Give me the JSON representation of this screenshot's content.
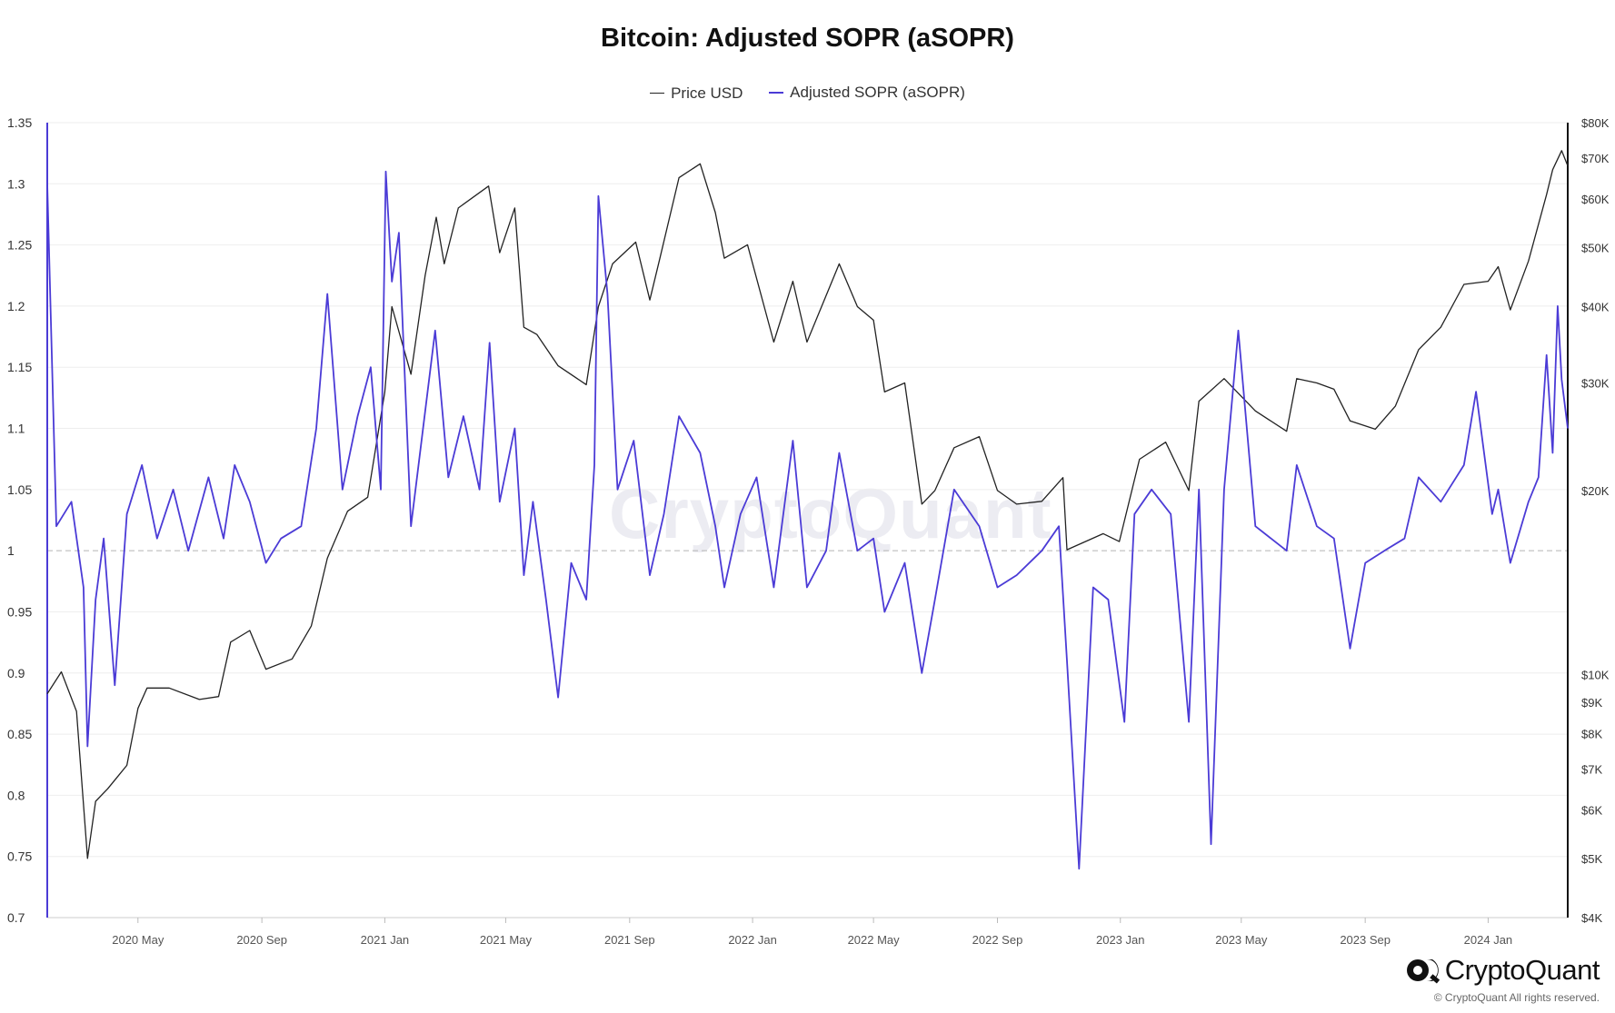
{
  "chart_data": {
    "type": "line",
    "title": "Bitcoin: Adjusted SOPR (aSOPR)",
    "legend_placement": "top-center",
    "grid": true,
    "x_range": [
      "2020-02-01",
      "2024-03-20"
    ],
    "x_ticks": [
      {
        "label": "2020 May",
        "date": "2020-05-01"
      },
      {
        "label": "2020 Sep",
        "date": "2020-09-01"
      },
      {
        "label": "2021 Jan",
        "date": "2021-01-01"
      },
      {
        "label": "2021 May",
        "date": "2021-05-01"
      },
      {
        "label": "2021 Sep",
        "date": "2021-09-01"
      },
      {
        "label": "2022 Jan",
        "date": "2022-01-01"
      },
      {
        "label": "2022 May",
        "date": "2022-05-01"
      },
      {
        "label": "2022 Sep",
        "date": "2022-09-01"
      },
      {
        "label": "2023 Jan",
        "date": "2023-01-01"
      },
      {
        "label": "2023 May",
        "date": "2023-05-01"
      },
      {
        "label": "2023 Sep",
        "date": "2023-09-01"
      },
      {
        "label": "2024 Jan",
        "date": "2024-01-01"
      }
    ],
    "y_left": {
      "scale": "linear",
      "range": [
        0.7,
        1.35
      ],
      "ticks": [
        1.35,
        1.3,
        1.25,
        1.2,
        1.15,
        1.1,
        1.05,
        1,
        0.95,
        0.9,
        0.85,
        0.8,
        0.75,
        0.7
      ],
      "tick_labels": [
        "1.35",
        "1.3",
        "1.25",
        "1.2",
        "1.15",
        "1.1",
        "1.05",
        "1",
        "0.95",
        "0.9",
        "0.85",
        "0.8",
        "0.75",
        "0.7"
      ],
      "reference_line": 1
    },
    "y_right": {
      "scale": "log",
      "range": [
        4000,
        80000
      ],
      "ticks": [
        80000,
        70000,
        60000,
        50000,
        40000,
        30000,
        20000,
        10000,
        9000,
        8000,
        7000,
        6000,
        5000,
        4000
      ],
      "tick_labels": [
        "$80K",
        "$70K",
        "$60K",
        "$50K",
        "$40K",
        "$30K",
        "$20K",
        "$10K",
        "$9K",
        "$8K",
        "$7K",
        "$6K",
        "$5K",
        "$4K"
      ]
    },
    "series": [
      {
        "name": "Price USD",
        "axis": "right",
        "color": "#222222",
        "points": [
          [
            "2020-02-01",
            9300
          ],
          [
            "2020-02-15",
            10100
          ],
          [
            "2020-03-01",
            8700
          ],
          [
            "2020-03-12",
            5000
          ],
          [
            "2020-03-20",
            6200
          ],
          [
            "2020-04-01",
            6500
          ],
          [
            "2020-04-20",
            7100
          ],
          [
            "2020-05-01",
            8800
          ],
          [
            "2020-05-10",
            9500
          ],
          [
            "2020-06-01",
            9500
          ],
          [
            "2020-07-01",
            9100
          ],
          [
            "2020-07-20",
            9200
          ],
          [
            "2020-08-01",
            11300
          ],
          [
            "2020-08-20",
            11800
          ],
          [
            "2020-09-05",
            10200
          ],
          [
            "2020-10-01",
            10600
          ],
          [
            "2020-10-20",
            12000
          ],
          [
            "2020-11-05",
            15500
          ],
          [
            "2020-11-25",
            18500
          ],
          [
            "2020-12-15",
            19500
          ],
          [
            "2021-01-01",
            29000
          ],
          [
            "2021-01-08",
            40000
          ],
          [
            "2021-01-27",
            31000
          ],
          [
            "2021-02-10",
            45000
          ],
          [
            "2021-02-21",
            56000
          ],
          [
            "2021-03-01",
            47000
          ],
          [
            "2021-03-15",
            58000
          ],
          [
            "2021-04-14",
            63000
          ],
          [
            "2021-04-25",
            49000
          ],
          [
            "2021-05-10",
            58000
          ],
          [
            "2021-05-19",
            37000
          ],
          [
            "2021-06-01",
            36000
          ],
          [
            "2021-06-22",
            32000
          ],
          [
            "2021-07-20",
            29800
          ],
          [
            "2021-08-01",
            40000
          ],
          [
            "2021-08-15",
            47000
          ],
          [
            "2021-09-07",
            51000
          ],
          [
            "2021-09-21",
            41000
          ],
          [
            "2021-10-01",
            48000
          ],
          [
            "2021-10-20",
            65000
          ],
          [
            "2021-11-10",
            68500
          ],
          [
            "2021-11-25",
            57000
          ],
          [
            "2021-12-04",
            48000
          ],
          [
            "2021-12-27",
            50500
          ],
          [
            "2022-01-22",
            35000
          ],
          [
            "2022-02-10",
            44000
          ],
          [
            "2022-02-24",
            35000
          ],
          [
            "2022-03-28",
            47000
          ],
          [
            "2022-04-15",
            40000
          ],
          [
            "2022-05-01",
            38000
          ],
          [
            "2022-05-12",
            29000
          ],
          [
            "2022-06-01",
            30000
          ],
          [
            "2022-06-18",
            19000
          ],
          [
            "2022-07-01",
            20000
          ],
          [
            "2022-07-20",
            23500
          ],
          [
            "2022-08-14",
            24500
          ],
          [
            "2022-09-01",
            20000
          ],
          [
            "2022-09-20",
            19000
          ],
          [
            "2022-10-15",
            19200
          ],
          [
            "2022-11-05",
            21000
          ],
          [
            "2022-11-09",
            16000
          ],
          [
            "2022-12-15",
            17000
          ],
          [
            "2022-12-31",
            16500
          ],
          [
            "2023-01-20",
            22500
          ],
          [
            "2023-02-15",
            24000
          ],
          [
            "2023-03-10",
            20000
          ],
          [
            "2023-03-20",
            28000
          ],
          [
            "2023-04-14",
            30500
          ],
          [
            "2023-05-15",
            27000
          ],
          [
            "2023-06-15",
            25000
          ],
          [
            "2023-06-25",
            30500
          ],
          [
            "2023-07-15",
            30000
          ],
          [
            "2023-08-01",
            29300
          ],
          [
            "2023-08-17",
            26000
          ],
          [
            "2023-09-11",
            25200
          ],
          [
            "2023-10-01",
            27500
          ],
          [
            "2023-10-24",
            34000
          ],
          [
            "2023-11-15",
            37000
          ],
          [
            "2023-12-08",
            43500
          ],
          [
            "2024-01-01",
            44000
          ],
          [
            "2024-01-11",
            46500
          ],
          [
            "2024-01-23",
            39500
          ],
          [
            "2024-02-10",
            47500
          ],
          [
            "2024-02-28",
            61000
          ],
          [
            "2024-03-05",
            67000
          ],
          [
            "2024-03-14",
            72000
          ],
          [
            "2024-03-20",
            68000
          ]
        ]
      },
      {
        "name": "Adjusted SOPR (aSOPR)",
        "axis": "left",
        "color": "#4b3bd6",
        "points": [
          [
            "2020-02-01",
            1.3
          ],
          [
            "2020-02-10",
            1.02
          ],
          [
            "2020-02-25",
            1.04
          ],
          [
            "2020-03-08",
            0.97
          ],
          [
            "2020-03-12",
            0.84
          ],
          [
            "2020-03-20",
            0.96
          ],
          [
            "2020-03-28",
            1.01
          ],
          [
            "2020-04-08",
            0.89
          ],
          [
            "2020-04-20",
            1.03
          ],
          [
            "2020-05-05",
            1.07
          ],
          [
            "2020-05-20",
            1.01
          ],
          [
            "2020-06-05",
            1.05
          ],
          [
            "2020-06-20",
            1.0
          ],
          [
            "2020-07-10",
            1.06
          ],
          [
            "2020-07-25",
            1.01
          ],
          [
            "2020-08-05",
            1.07
          ],
          [
            "2020-08-20",
            1.04
          ],
          [
            "2020-09-05",
            0.99
          ],
          [
            "2020-09-20",
            1.01
          ],
          [
            "2020-10-10",
            1.02
          ],
          [
            "2020-10-25",
            1.1
          ],
          [
            "2020-11-05",
            1.21
          ],
          [
            "2020-11-20",
            1.05
          ],
          [
            "2020-12-05",
            1.11
          ],
          [
            "2020-12-18",
            1.15
          ],
          [
            "2020-12-28",
            1.05
          ],
          [
            "2021-01-02",
            1.31
          ],
          [
            "2021-01-08",
            1.22
          ],
          [
            "2021-01-15",
            1.26
          ],
          [
            "2021-01-27",
            1.02
          ],
          [
            "2021-02-08",
            1.1
          ],
          [
            "2021-02-20",
            1.18
          ],
          [
            "2021-03-05",
            1.06
          ],
          [
            "2021-03-20",
            1.11
          ],
          [
            "2021-04-05",
            1.05
          ],
          [
            "2021-04-15",
            1.17
          ],
          [
            "2021-04-25",
            1.04
          ],
          [
            "2021-05-10",
            1.1
          ],
          [
            "2021-05-19",
            0.98
          ],
          [
            "2021-05-28",
            1.04
          ],
          [
            "2021-06-10",
            0.96
          ],
          [
            "2021-06-22",
            0.88
          ],
          [
            "2021-07-05",
            0.99
          ],
          [
            "2021-07-20",
            0.96
          ],
          [
            "2021-07-28",
            1.07
          ],
          [
            "2021-08-01",
            1.29
          ],
          [
            "2021-08-10",
            1.21
          ],
          [
            "2021-08-20",
            1.05
          ],
          [
            "2021-09-05",
            1.09
          ],
          [
            "2021-09-21",
            0.98
          ],
          [
            "2021-10-05",
            1.03
          ],
          [
            "2021-10-20",
            1.11
          ],
          [
            "2021-11-10",
            1.08
          ],
          [
            "2021-11-25",
            1.02
          ],
          [
            "2021-12-04",
            0.97
          ],
          [
            "2021-12-20",
            1.03
          ],
          [
            "2022-01-05",
            1.06
          ],
          [
            "2022-01-22",
            0.97
          ],
          [
            "2022-02-10",
            1.09
          ],
          [
            "2022-02-24",
            0.97
          ],
          [
            "2022-03-15",
            1.0
          ],
          [
            "2022-03-28",
            1.08
          ],
          [
            "2022-04-15",
            1.0
          ],
          [
            "2022-05-01",
            1.01
          ],
          [
            "2022-05-12",
            0.95
          ],
          [
            "2022-06-01",
            0.99
          ],
          [
            "2022-06-18",
            0.9
          ],
          [
            "2022-07-01",
            0.96
          ],
          [
            "2022-07-20",
            1.05
          ],
          [
            "2022-08-14",
            1.02
          ],
          [
            "2022-09-01",
            0.97
          ],
          [
            "2022-09-20",
            0.98
          ],
          [
            "2022-10-15",
            1.0
          ],
          [
            "2022-11-01",
            1.02
          ],
          [
            "2022-11-09",
            0.91
          ],
          [
            "2022-11-21",
            0.74
          ],
          [
            "2022-12-05",
            0.97
          ],
          [
            "2022-12-20",
            0.96
          ],
          [
            "2023-01-05",
            0.86
          ],
          [
            "2023-01-15",
            1.03
          ],
          [
            "2023-02-01",
            1.05
          ],
          [
            "2023-02-20",
            1.03
          ],
          [
            "2023-03-10",
            0.86
          ],
          [
            "2023-03-20",
            1.05
          ],
          [
            "2023-04-01",
            0.76
          ],
          [
            "2023-04-14",
            1.05
          ],
          [
            "2023-04-28",
            1.18
          ],
          [
            "2023-05-15",
            1.02
          ],
          [
            "2023-06-15",
            1.0
          ],
          [
            "2023-06-25",
            1.07
          ],
          [
            "2023-07-15",
            1.02
          ],
          [
            "2023-08-01",
            1.01
          ],
          [
            "2023-08-17",
            0.92
          ],
          [
            "2023-09-01",
            0.99
          ],
          [
            "2023-09-20",
            1.0
          ],
          [
            "2023-10-10",
            1.01
          ],
          [
            "2023-10-24",
            1.06
          ],
          [
            "2023-11-15",
            1.04
          ],
          [
            "2023-12-08",
            1.07
          ],
          [
            "2023-12-20",
            1.13
          ],
          [
            "2024-01-05",
            1.03
          ],
          [
            "2024-01-11",
            1.05
          ],
          [
            "2024-01-23",
            0.99
          ],
          [
            "2024-02-10",
            1.04
          ],
          [
            "2024-02-20",
            1.06
          ],
          [
            "2024-02-28",
            1.16
          ],
          [
            "2024-03-05",
            1.08
          ],
          [
            "2024-03-10",
            1.2
          ],
          [
            "2024-03-14",
            1.14
          ],
          [
            "2024-03-20",
            1.1
          ]
        ]
      }
    ],
    "watermark": "CryptoQuant"
  },
  "brand": {
    "name": "CryptoQuant",
    "copyright": "© CryptoQuant All rights reserved.",
    "accent": "#4b3bd6",
    "logo_icon": "cryptoquant-logo-icon"
  }
}
